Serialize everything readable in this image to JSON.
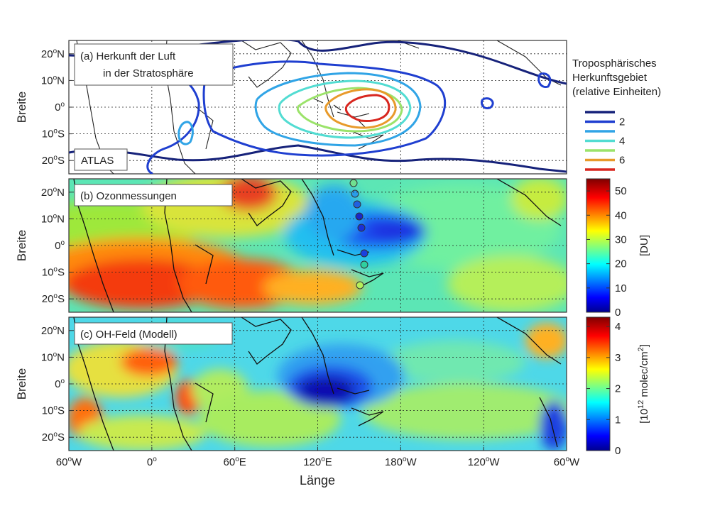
{
  "chart_data": {
    "type": "heatmap",
    "xlabel": "Länge",
    "x_ticks": [
      "60°W",
      "0°",
      "60°E",
      "120°E",
      "180°W",
      "120°W",
      "60°W"
    ],
    "x_tick_sup": [
      "o",
      "o",
      "o",
      "o",
      "o",
      "o",
      "o"
    ],
    "x_tick_base": [
      "60",
      "0",
      "60",
      "120",
      "180",
      "120",
      "60"
    ],
    "x_tick_suffix": [
      "W",
      "",
      "E",
      "E",
      "W",
      "W",
      "W"
    ],
    "xlim": [
      -60,
      300
    ],
    "panels": [
      {
        "id": "a",
        "label_lines": [
          "(a) Herkunft der Luft",
          "in der Stratosphäre"
        ],
        "box_text": "ATLAS",
        "ylabel": "Breite",
        "y_ticks": [
          "20°N",
          "10°N",
          "0°",
          "10°S",
          "20°S"
        ],
        "ylim": [
          -25,
          25
        ],
        "legend_title": [
          "Troposphärisches",
          "Herkunftsgebiet",
          "(relative Einheiten)"
        ],
        "contour_levels": [
          {
            "value": 1,
            "label": "",
            "color": "#16227a"
          },
          {
            "value": 2,
            "label": "2",
            "color": "#1f3fd0"
          },
          {
            "value": 3,
            "label": "",
            "color": "#30a4e6"
          },
          {
            "value": 4,
            "label": "4",
            "color": "#52dcd2"
          },
          {
            "value": 5,
            "label": "",
            "color": "#9be36a"
          },
          {
            "value": 6,
            "label": "6",
            "color": "#e89a2a"
          },
          {
            "value": 7,
            "label": "",
            "color": "#d8261f"
          }
        ]
      },
      {
        "id": "b",
        "label_lines": [
          "(b) Ozonmessungen"
        ],
        "ylabel": "Breite",
        "y_ticks": [
          "20°N",
          "10°N",
          "0°",
          "10°S",
          "20°S"
        ],
        "ylim": [
          -25,
          25
        ],
        "colorbar": {
          "label": "[DU]",
          "ticks": [
            "0",
            "10",
            "20",
            "30",
            "40",
            "50"
          ],
          "range": [
            0,
            55
          ]
        }
      },
      {
        "id": "c",
        "label_lines": [
          "(c) OH-Feld (Modell)"
        ],
        "ylabel": "Breite",
        "y_ticks": [
          "20°N",
          "10°N",
          "0°",
          "10°S",
          "20°S"
        ],
        "ylim": [
          -25,
          25
        ],
        "colorbar": {
          "label_main": "[10",
          "label_sup": "12",
          "label_rest": " molec/cm",
          "label_sup2": "2",
          "label_end": "]",
          "ticks": [
            "0",
            "1",
            "2",
            "3",
            "4"
          ],
          "range": [
            0,
            4.3
          ]
        }
      }
    ],
    "grid": true
  }
}
